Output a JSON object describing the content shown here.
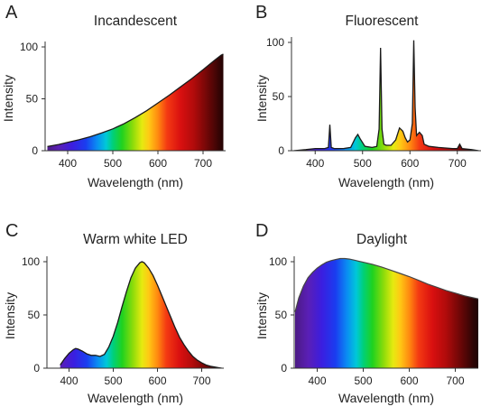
{
  "figure": {
    "panels": [
      {
        "letter": "A",
        "title": "Incandescent",
        "xlabel": "Wavelength (nm)",
        "ylabel": "Intensity"
      },
      {
        "letter": "B",
        "title": "Fluorescent",
        "xlabel": "Wavelength (nm)",
        "ylabel": "Intensity"
      },
      {
        "letter": "C",
        "title": "Warm white LED",
        "xlabel": "Wavelength (nm)",
        "ylabel": "Intensity"
      },
      {
        "letter": "D",
        "title": "Daylight",
        "xlabel": "Wavelength (nm)",
        "ylabel": "Intensity"
      }
    ]
  },
  "chart_data": [
    {
      "type": "area",
      "panel": "A",
      "title": "Incandescent",
      "xlabel": "Wavelength (nm)",
      "ylabel": "Intensity",
      "xlim": [
        350,
        750
      ],
      "ylim": [
        0,
        100
      ],
      "xticks": [
        400,
        500,
        600,
        700
      ],
      "yticks": [
        0,
        50,
        100
      ],
      "fill": "spectral gradient (violet to dark red)",
      "x": [
        355,
        380,
        400,
        425,
        450,
        475,
        500,
        525,
        550,
        575,
        600,
        625,
        650,
        675,
        700,
        725,
        740,
        745
      ],
      "y": [
        4,
        6,
        8,
        10.5,
        13.5,
        17,
        21,
        26,
        32,
        38.5,
        46,
        53.5,
        61.5,
        69.5,
        78,
        87,
        92,
        93
      ]
    },
    {
      "type": "area",
      "panel": "B",
      "title": "Fluorescent",
      "xlabel": "Wavelength (nm)",
      "ylabel": "Intensity",
      "xlim": [
        350,
        750
      ],
      "ylim": [
        0,
        100
      ],
      "xticks": [
        400,
        500,
        600,
        700
      ],
      "yticks": [
        0,
        50,
        100
      ],
      "fill": "spectral gradient under line spectrum",
      "x": [
        355,
        380,
        400,
        420,
        428,
        431,
        434,
        440,
        460,
        475,
        485,
        490,
        495,
        505,
        520,
        530,
        535,
        538,
        541,
        545,
        550,
        560,
        570,
        578,
        585,
        590,
        595,
        600,
        605,
        608,
        611,
        614,
        620,
        626,
        630,
        640,
        660,
        690,
        700,
        705,
        710,
        730,
        745
      ],
      "y": [
        0,
        1,
        2,
        2,
        3,
        24,
        3,
        2,
        2,
        3,
        12,
        15,
        11,
        4,
        3,
        4,
        20,
        95,
        20,
        6,
        5,
        5,
        10,
        21,
        18,
        12,
        8,
        10,
        25,
        102,
        40,
        14,
        17,
        14,
        6,
        4,
        3,
        2,
        2,
        6,
        2,
        1,
        0
      ]
    },
    {
      "type": "area",
      "panel": "C",
      "title": "Warm white LED",
      "xlabel": "Wavelength (nm)",
      "ylabel": "Intensity",
      "xlim": [
        350,
        750
      ],
      "ylim": [
        0,
        100
      ],
      "xticks": [
        400,
        500,
        600,
        700
      ],
      "yticks": [
        0,
        50,
        100
      ],
      "fill": "spectral gradient (violet to dark red)",
      "x": [
        380,
        390,
        400,
        410,
        415,
        420,
        430,
        440,
        450,
        460,
        470,
        480,
        490,
        500,
        510,
        520,
        530,
        540,
        550,
        560,
        565,
        570,
        580,
        590,
        600,
        610,
        620,
        630,
        640,
        650,
        660,
        670,
        680,
        690,
        700,
        710,
        720,
        730,
        740,
        745
      ],
      "y": [
        3,
        9,
        14,
        17.5,
        18.5,
        18,
        16,
        13.5,
        12,
        12,
        11,
        13,
        20,
        30,
        43,
        58,
        72,
        85,
        94,
        99,
        100,
        99,
        94,
        87,
        78,
        68,
        58,
        48,
        38,
        29,
        22,
        16,
        11,
        7.5,
        5,
        3,
        1.8,
        1,
        0.3,
        0
      ]
    },
    {
      "type": "area",
      "panel": "D",
      "title": "Daylight",
      "xlabel": "Wavelength (nm)",
      "ylabel": "Intensity",
      "xlim": [
        350,
        750
      ],
      "ylim": [
        0,
        100
      ],
      "xticks": [
        400,
        500,
        600,
        700
      ],
      "yticks": [
        0,
        50,
        100
      ],
      "fill": "spectral gradient (violet to dark red)",
      "x": [
        352,
        360,
        370,
        380,
        390,
        400,
        410,
        420,
        430,
        440,
        450,
        460,
        470,
        480,
        490,
        500,
        520,
        540,
        560,
        580,
        600,
        620,
        640,
        660,
        680,
        700,
        720,
        740,
        750
      ],
      "y": [
        53,
        66,
        77,
        85,
        90,
        94,
        97,
        99.5,
        101,
        102,
        103,
        103,
        102.5,
        101.5,
        100.5,
        99.5,
        97.5,
        95,
        92,
        89,
        86,
        82.5,
        79,
        76,
        73,
        70.5,
        68,
        66,
        65
      ]
    }
  ]
}
